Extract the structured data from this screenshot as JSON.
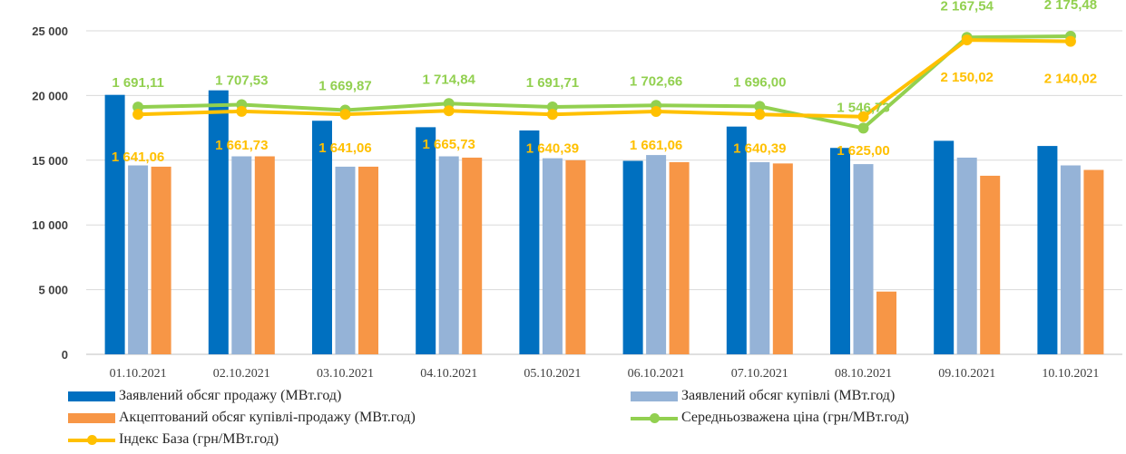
{
  "chart_data": {
    "type": "bar",
    "categories": [
      "01.10.2021",
      "02.10.2021",
      "03.10.2021",
      "04.10.2021",
      "05.10.2021",
      "06.10.2021",
      "07.10.2021",
      "08.10.2021",
      "09.10.2021",
      "10.10.2021"
    ],
    "ylim": [
      0,
      25000
    ],
    "yticks": [
      0,
      5000,
      10000,
      15000,
      20000,
      25000
    ],
    "ytick_labels": [
      "0",
      "5 000",
      "10 000",
      "15 000",
      "20 000",
      "25 000"
    ],
    "grid": true,
    "legend_position": "bottom",
    "series": [
      {
        "name": "Заявлений обсяг продажу (МВт.год)",
        "type": "bar",
        "color": "#0070C0",
        "values": [
          20050,
          20400,
          18050,
          17550,
          17300,
          14950,
          17600,
          15950,
          16500,
          16100
        ]
      },
      {
        "name": "Заявлений обсяг купівлі (МВт.год)",
        "type": "bar",
        "color": "#95B3D7",
        "values": [
          14600,
          15300,
          14500,
          15300,
          15150,
          15400,
          14850,
          14700,
          15200,
          14600
        ]
      },
      {
        "name": "Акцептований обсяг купівлі-продажу (МВт.год)",
        "type": "bar",
        "color": "#F79646",
        "values": [
          14500,
          15300,
          14500,
          15200,
          15000,
          14850,
          14750,
          4850,
          13800,
          14250
        ]
      },
      {
        "name": "Середньозважена ціна (грн/МВт.год)",
        "type": "line",
        "color": "#92D050",
        "values": [
          1691.11,
          1707.53,
          1669.87,
          1714.84,
          1691.71,
          1702.66,
          1696.0,
          1546.73,
          2167.54,
          2175.48
        ],
        "labels": [
          "1 691,11",
          "1 707,53",
          "1 669,87",
          "1 714,84",
          "1 691,71",
          "1 702,66",
          "1 696,00",
          "1 546,73",
          "2 167,54",
          "2 175,48"
        ]
      },
      {
        "name": "Індекс База (грн/МВт.год)",
        "type": "line",
        "color": "#FFC000",
        "values": [
          1641.06,
          1661.73,
          1641.06,
          1665.73,
          1640.39,
          1661.06,
          1640.39,
          1625.0,
          2150.02,
          2140.02
        ],
        "labels": [
          "1 641,06",
          "1 661,73",
          "1 641,06",
          "1 665,73",
          "1 640,39",
          "1 661,06",
          "1 640,39",
          "1 625,00",
          "2 150,02",
          "2 140,02"
        ]
      }
    ]
  }
}
